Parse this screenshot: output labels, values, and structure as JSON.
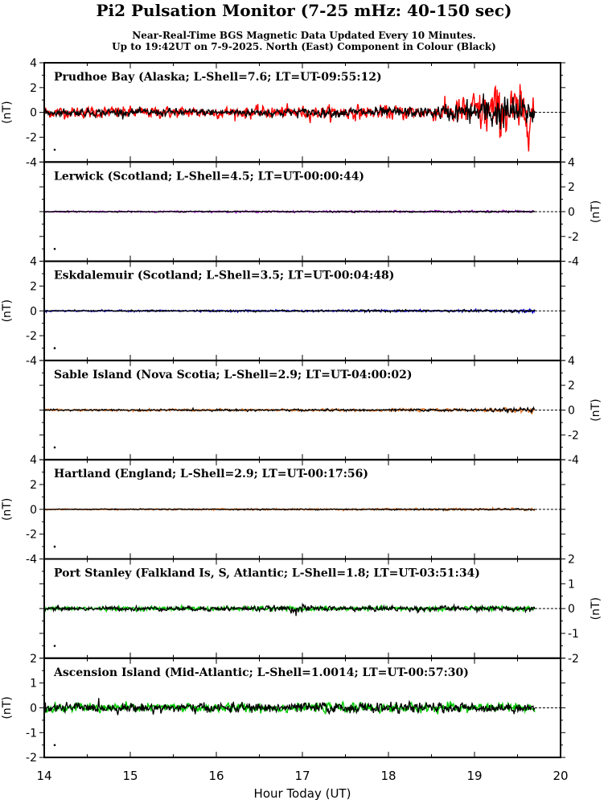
{
  "title": "Pi2 Pulsation Monitor (7-25 mHz: 40-150 sec)",
  "subtitle_line1": "Near-Real-Time BGS Magnetic Data Updated Every 10 Minutes.",
  "subtitle_line2": "Up to 19:42UT on 7-9-2025. North (East) Component in Colour (Black)",
  "chart_data": {
    "type": "line",
    "xlabel": "Hour Today (UT)",
    "xlim": [
      14,
      20
    ],
    "x_ticks": [
      "14",
      "15",
      "16",
      "17",
      "18",
      "19",
      "20"
    ],
    "x_end": 19.7,
    "ylabel": "(nT)",
    "panels": [
      {
        "label": "Prudhoe Bay (Alaska; L-Shell=7.6; LT=UT-09:55:12)",
        "ylim": [
          -4,
          4
        ],
        "y_ticks": [
          "-4",
          "-2",
          "0",
          "2",
          "4"
        ],
        "axis_side": "left",
        "north_color": "#ff0000",
        "series": [
          {
            "component": "North",
            "amplitude_profile": [
              [
                14.0,
                0.3
              ],
              [
                16.0,
                0.3
              ],
              [
                17.5,
                0.35
              ],
              [
                18.5,
                0.4
              ],
              [
                18.9,
                0.9
              ],
              [
                19.2,
                1.4
              ],
              [
                19.7,
                1.3
              ]
            ]
          },
          {
            "component": "East",
            "amplitude_profile": [
              [
                14.0,
                0.2
              ],
              [
                16.0,
                0.2
              ],
              [
                17.5,
                0.25
              ],
              [
                18.5,
                0.3
              ],
              [
                18.9,
                0.6
              ],
              [
                19.2,
                1.0
              ],
              [
                19.7,
                0.7
              ]
            ]
          }
        ]
      },
      {
        "label": "Lerwick (Scotland; L-Shell=4.5; LT=UT-00:00:44)",
        "ylim": [
          -4,
          4
        ],
        "y_ticks": [
          "-4",
          "-2",
          "0",
          "2",
          "4"
        ],
        "axis_side": "right",
        "north_color": "#9900cc",
        "series": [
          {
            "component": "North",
            "amplitude_profile": [
              [
                14.0,
                0.03
              ],
              [
                19.7,
                0.05
              ]
            ]
          },
          {
            "component": "East",
            "amplitude_profile": [
              [
                14.0,
                0.02
              ],
              [
                19.7,
                0.04
              ]
            ]
          }
        ]
      },
      {
        "label": "Eskdalemuir (Scotland; L-Shell=3.5; LT=UT-00:04:48)",
        "ylim": [
          -4,
          4
        ],
        "y_ticks": [
          "-4",
          "-2",
          "0",
          "2",
          "4"
        ],
        "axis_side": "left",
        "north_color": "#0000cc",
        "series": [
          {
            "component": "North",
            "amplitude_profile": [
              [
                14.0,
                0.04
              ],
              [
                19.0,
                0.05
              ],
              [
                19.7,
                0.1
              ]
            ]
          },
          {
            "component": "East",
            "amplitude_profile": [
              [
                14.0,
                0.03
              ],
              [
                19.7,
                0.06
              ]
            ]
          }
        ]
      },
      {
        "label": "Sable Island (Nova Scotia; L-Shell=2.9; LT=UT-04:00:02)",
        "ylim": [
          -4,
          4
        ],
        "y_ticks": [
          "-4",
          "-2",
          "0",
          "2",
          "4"
        ],
        "axis_side": "right",
        "north_color": "#e07020",
        "series": [
          {
            "component": "North",
            "amplitude_profile": [
              [
                14.0,
                0.05
              ],
              [
                19.0,
                0.07
              ],
              [
                19.7,
                0.15
              ]
            ]
          },
          {
            "component": "East",
            "amplitude_profile": [
              [
                14.0,
                0.04
              ],
              [
                19.0,
                0.06
              ],
              [
                19.7,
                0.12
              ]
            ]
          }
        ]
      },
      {
        "label": "Hartland (England; L-Shell=2.9; LT=UT-00:17:56)",
        "ylim": [
          -4,
          4
        ],
        "y_ticks": [
          "-4",
          "-2",
          "0",
          "2",
          "4"
        ],
        "axis_side": "left",
        "north_color": "#e07020",
        "series": [
          {
            "component": "North",
            "amplitude_profile": [
              [
                14.0,
                0.03
              ],
              [
                19.7,
                0.06
              ]
            ]
          },
          {
            "component": "East",
            "amplitude_profile": [
              [
                14.0,
                0.02
              ],
              [
                19.7,
                0.04
              ]
            ]
          }
        ]
      },
      {
        "label": "Port Stanley (Falkland Is, S, Atlantic; L-Shell=1.8; LT=UT-03:51:34)",
        "ylim": [
          -2,
          2
        ],
        "y_ticks": [
          "-2",
          "-1",
          "0",
          "1",
          "2"
        ],
        "axis_side": "right",
        "north_color": "#00cc00",
        "series": [
          {
            "component": "North",
            "amplitude_profile": [
              [
                14.0,
                0.05
              ],
              [
                19.7,
                0.06
              ]
            ]
          },
          {
            "component": "East",
            "amplitude_profile": [
              [
                14.0,
                0.05
              ],
              [
                16.8,
                0.07
              ],
              [
                16.95,
                0.15
              ],
              [
                17.1,
                0.07
              ],
              [
                19.7,
                0.07
              ]
            ]
          }
        ]
      },
      {
        "label": "Ascension Island (Mid-Atlantic; L-Shell=1.0014; LT=UT-00:57:30)",
        "ylim": [
          -2,
          2
        ],
        "y_ticks": [
          "-2",
          "-1",
          "0",
          "1",
          "2"
        ],
        "axis_side": "left",
        "north_color": "#00cc00",
        "series": [
          {
            "component": "North",
            "amplitude_profile": [
              [
                14.0,
                0.12
              ],
              [
                19.7,
                0.12
              ]
            ]
          },
          {
            "component": "East",
            "amplitude_profile": [
              [
                14.0,
                0.12
              ],
              [
                16.0,
                0.12
              ],
              [
                17.0,
                0.14
              ],
              [
                19.7,
                0.12
              ]
            ]
          }
        ]
      }
    ]
  }
}
